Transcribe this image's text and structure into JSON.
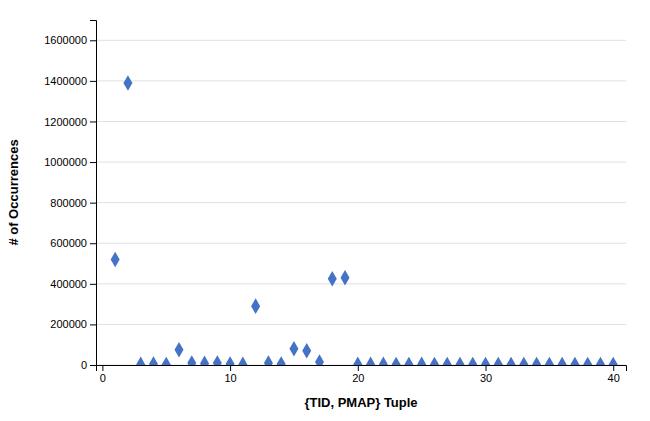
{
  "chart_data": {
    "type": "scatter",
    "xlabel": "{TID, PMAP} Tuple",
    "ylabel": "# of Occurrences",
    "x": [
      1,
      2,
      3,
      4,
      5,
      6,
      7,
      8,
      9,
      10,
      11,
      12,
      13,
      14,
      15,
      16,
      17,
      18,
      19,
      20,
      21,
      22,
      23,
      24,
      25,
      26,
      27,
      28,
      29,
      30,
      31,
      32,
      33,
      34,
      35,
      36,
      37,
      38,
      39,
      40
    ],
    "y": [
      520000,
      1390000,
      3000,
      5000,
      2000,
      75000,
      10000,
      8000,
      10000,
      5000,
      3000,
      290000,
      10000,
      5000,
      80000,
      70000,
      15000,
      425000,
      430000,
      3000,
      3000,
      3000,
      2000,
      2000,
      3000,
      2000,
      2000,
      2000,
      2000,
      2000,
      2000,
      2000,
      2000,
      2000,
      2000,
      2000,
      2000,
      2000,
      2000,
      2000
    ],
    "xlim": [
      -0.5,
      41
    ],
    "ylim": [
      0,
      1700000
    ],
    "xticks": [
      0,
      10,
      20,
      30,
      40
    ],
    "yticks": [
      0,
      200000,
      400000,
      600000,
      800000,
      1000000,
      1200000,
      1400000,
      1600000
    ],
    "color": "#4472C4",
    "marker": "diamond",
    "grid": "y"
  }
}
